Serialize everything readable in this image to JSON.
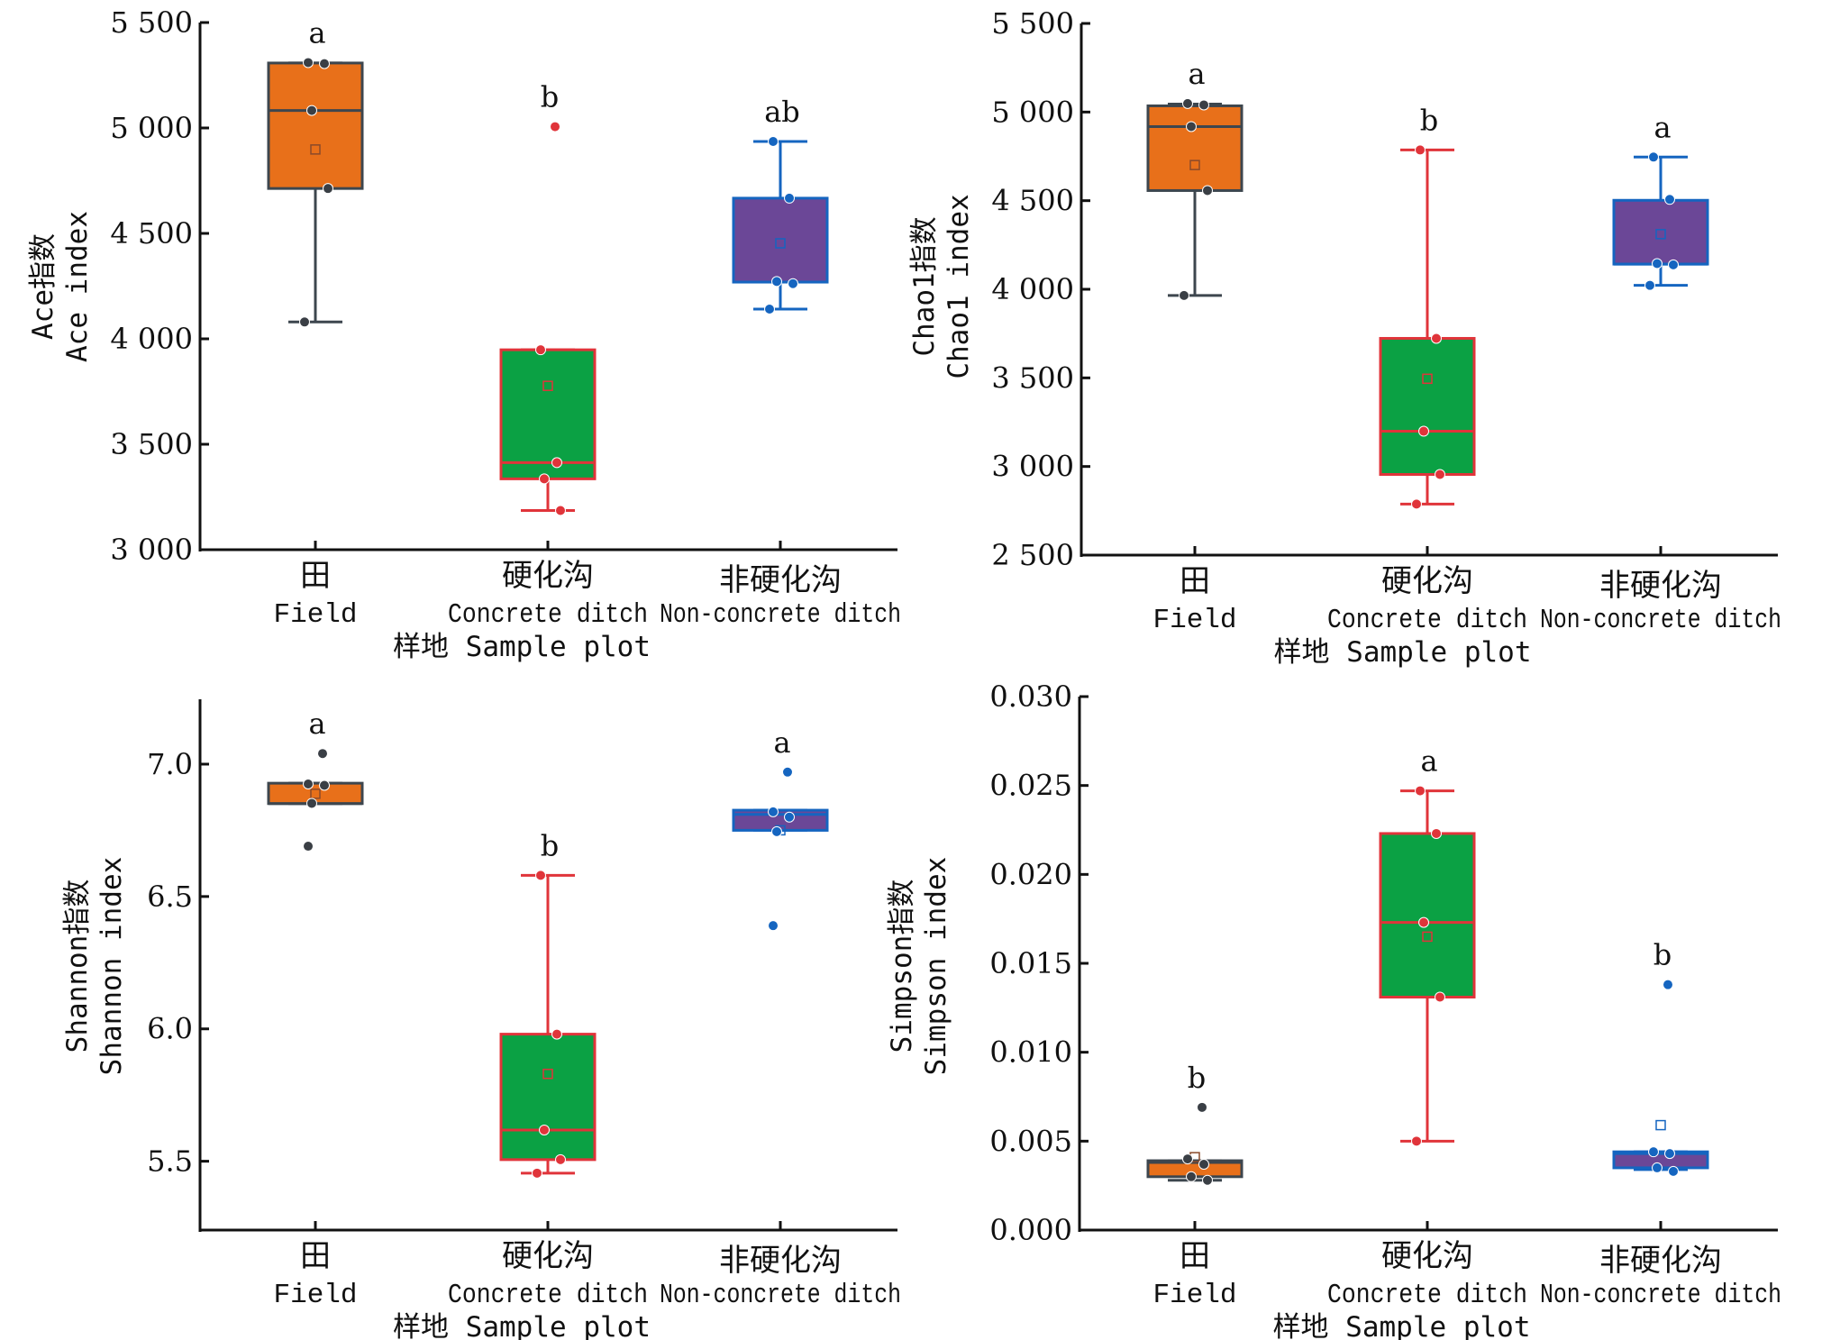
{
  "figure": {
    "xlabel": "样地 Sample plot",
    "categories": [
      {
        "cn": "田",
        "en": "Field"
      },
      {
        "cn": "硬化沟",
        "en": "Concrete ditch"
      },
      {
        "cn": "非硬化沟",
        "en": "Non-concrete ditch"
      }
    ],
    "colors": {
      "Field": {
        "fill": "#e8701a",
        "stroke": "#3d464e",
        "point": "#3a3f45"
      },
      "Concrete ditch": {
        "fill": "#0ba144",
        "stroke": "#e0343a",
        "point": "#e0343a"
      },
      "Non-concrete ditch": {
        "fill": "#6b4797",
        "stroke": "#1565c0",
        "point": "#1565c0"
      }
    }
  },
  "chart_data": [
    {
      "type": "box",
      "title": "Ace index",
      "ylabel_cn": "Ace指数",
      "ylabel_en": "Ace index",
      "xlabel": "样地 Sample plot",
      "categories": [
        "Field",
        "Concrete ditch",
        "Non-concrete ditch"
      ],
      "ylim": [
        3000,
        5500
      ],
      "yticks": [
        3000,
        3500,
        4000,
        4500,
        5000,
        5500
      ],
      "ytick_labels": [
        "3 000",
        "3 500",
        "4 000",
        "4 500",
        "5 000",
        "5 500"
      ],
      "series": [
        {
          "name": "Field",
          "q1": 4713,
          "median": 5083,
          "q3": 5308,
          "whisker_low": 4080,
          "whisker_high": 5308,
          "mean": 4898,
          "points": [
            5310,
            5305,
            5083,
            4713,
            4080
          ],
          "outliers": [],
          "letter": "a"
        },
        {
          "name": "Concrete ditch",
          "q1": 3336,
          "median": 3413,
          "q3": 3948,
          "whisker_low": 3186,
          "whisker_high": 3948,
          "mean": 3777,
          "points": [
            3948,
            3413,
            3336,
            3186
          ],
          "outliers": [
            5006
          ],
          "letter": "b"
        },
        {
          "name": "Non-concrete ditch",
          "q1": 4269,
          "median": 4269,
          "q3": 4667,
          "whisker_low": 4141,
          "whisker_high": 4936,
          "mean": 4453,
          "points": [
            4936,
            4667,
            4272,
            4262,
            4141
          ],
          "outliers": [],
          "letter": "ab"
        }
      ]
    },
    {
      "type": "box",
      "title": "Chao1 index",
      "ylabel_cn": "Chao1指数",
      "ylabel_en": "Chao1 index",
      "xlabel": "样地 Sample plot",
      "categories": [
        "Field",
        "Concrete ditch",
        "Non-concrete ditch"
      ],
      "ylim": [
        2500,
        5500
      ],
      "yticks": [
        2500,
        3000,
        3500,
        4000,
        4500,
        5000,
        5500
      ],
      "ytick_labels": [
        "2 500",
        "3 000",
        "3 500",
        "4 000",
        "4 500",
        "5 000",
        "5 500"
      ],
      "series": [
        {
          "name": "Field",
          "q1": 4557,
          "median": 4918,
          "q3": 5035,
          "whisker_low": 3965,
          "whisker_high": 5045,
          "mean": 4701,
          "points": [
            5048,
            5040,
            4918,
            4557,
            3965
          ],
          "outliers": [],
          "letter": "a"
        },
        {
          "name": "Concrete ditch",
          "q1": 2955,
          "median": 3199,
          "q3": 3723,
          "whisker_low": 2788,
          "whisker_high": 4786,
          "mean": 3495,
          "points": [
            4786,
            3723,
            3199,
            2955,
            2788
          ],
          "outliers": [],
          "letter": "b"
        },
        {
          "name": "Non-concrete ditch",
          "q1": 4142,
          "median": 4142,
          "q3": 4502,
          "whisker_low": 4022,
          "whisker_high": 4746,
          "mean": 4311,
          "points": [
            4746,
            4507,
            4145,
            4138,
            4022
          ],
          "outliers": [],
          "letter": "a"
        }
      ]
    },
    {
      "type": "box",
      "title": "Shannon index",
      "ylabel_cn": "Shannon指数",
      "ylabel_en": "Shannon index",
      "xlabel": "样地 Sample plot",
      "categories": [
        "Field",
        "Concrete ditch",
        "Non-concrete ditch"
      ],
      "ylim": [
        5.24,
        7.245
      ],
      "yticks": [
        5.5,
        6.0,
        6.5,
        7.0
      ],
      "ytick_labels": [
        "5.5",
        "6.0",
        "6.5",
        "7.0"
      ],
      "series": [
        {
          "name": "Field",
          "q1": 6.851,
          "median": 6.851,
          "q3": 6.928,
          "whisker_low": 6.851,
          "whisker_high": 6.928,
          "mean": 6.888,
          "points": [
            6.925,
            6.92,
            6.852
          ],
          "outliers": [
            7.04,
            6.69
          ],
          "letter": "a"
        },
        {
          "name": "Concrete ditch",
          "q1": 5.506,
          "median": 5.618,
          "q3": 5.98,
          "whisker_low": 5.455,
          "whisker_high": 6.58,
          "mean": 5.83,
          "points": [
            6.58,
            5.98,
            5.618,
            5.506,
            5.455
          ],
          "outliers": [],
          "letter": "b"
        },
        {
          "name": "Non-concrete ditch",
          "q1": 6.75,
          "median": 6.81,
          "q3": 6.826,
          "whisker_low": 6.75,
          "whisker_high": 6.826,
          "mean": 6.75,
          "points": [
            6.82,
            6.8,
            6.745
          ],
          "outliers": [
            6.97,
            6.39
          ],
          "letter": "a"
        }
      ]
    },
    {
      "type": "box",
      "title": "Simpson index",
      "ylabel_cn": "Simpson指数",
      "ylabel_en": "Simpson index",
      "xlabel": "样地 Sample plot",
      "categories": [
        "Field",
        "Concrete ditch",
        "Non-concrete ditch"
      ],
      "ylim": [
        0.0,
        0.03
      ],
      "yticks": [
        0.0,
        0.005,
        0.01,
        0.015,
        0.02,
        0.025,
        0.03
      ],
      "ytick_labels": [
        "0.000",
        "0.005",
        "0.010",
        "0.015",
        "0.020",
        "0.025",
        "0.030"
      ],
      "series": [
        {
          "name": "Field",
          "q1": 0.003,
          "median": 0.0038,
          "q3": 0.0039,
          "whisker_low": 0.0028,
          "whisker_high": 0.0039,
          "mean": 0.0041,
          "points": [
            0.004,
            0.0037,
            0.003,
            0.0028
          ],
          "outliers": [
            0.0069
          ],
          "letter": "b"
        },
        {
          "name": "Concrete ditch",
          "q1": 0.0131,
          "median": 0.0173,
          "q3": 0.0223,
          "whisker_low": 0.005,
          "whisker_high": 0.0247,
          "mean": 0.0165,
          "points": [
            0.0247,
            0.0223,
            0.0173,
            0.0131,
            0.005
          ],
          "outliers": [],
          "letter": "a"
        },
        {
          "name": "Non-concrete ditch",
          "q1": 0.0035,
          "median": 0.0043,
          "q3": 0.0044,
          "whisker_low": 0.0034,
          "whisker_high": 0.0044,
          "mean": 0.0059,
          "points": [
            0.0044,
            0.0043,
            0.0035,
            0.0033
          ],
          "outliers": [
            0.0138
          ],
          "letter": "b"
        }
      ]
    }
  ]
}
